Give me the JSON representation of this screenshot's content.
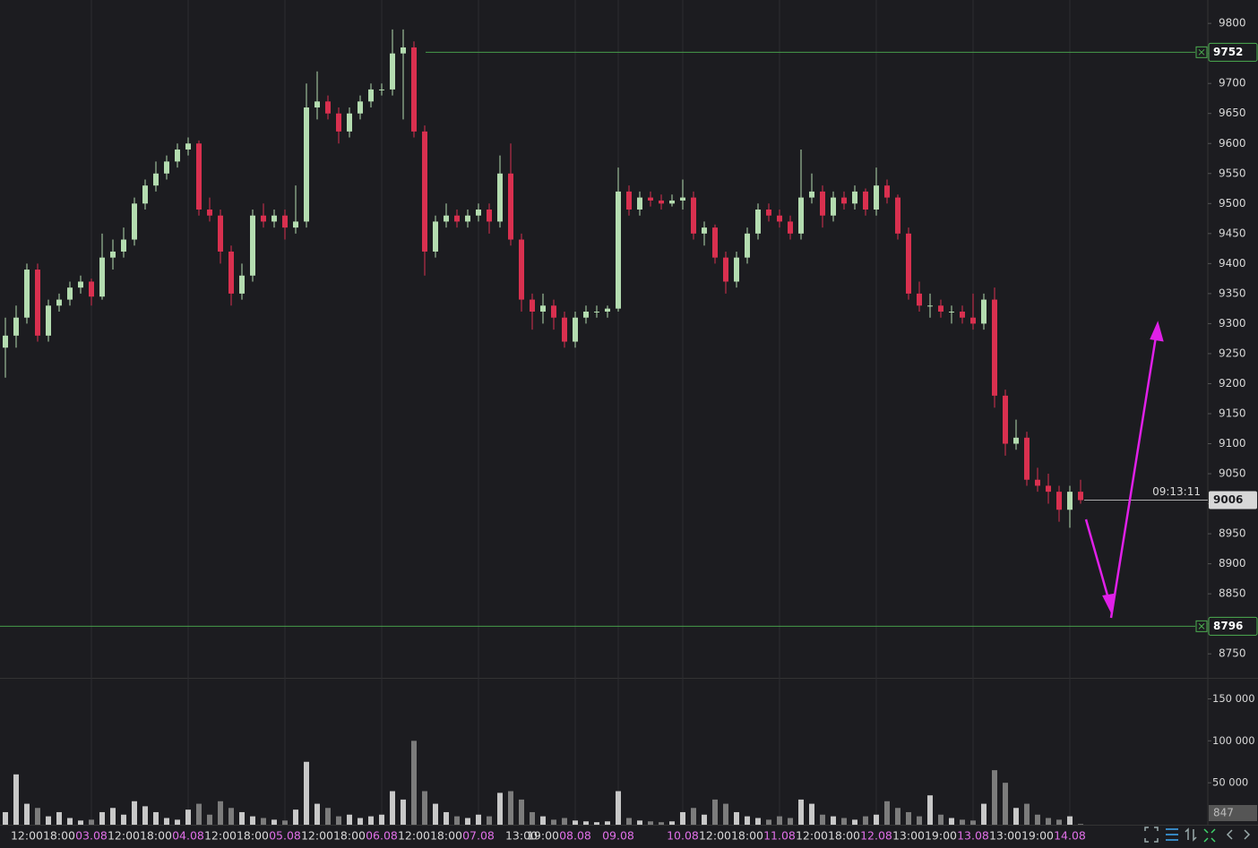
{
  "chart_data": {
    "type": "candlestick",
    "categories": [
      null,
      null,
      "12:00",
      null,
      null,
      "18:00",
      null,
      null,
      "03.08",
      null,
      null,
      "12:00",
      null,
      null,
      "18:00",
      null,
      null,
      "04.08",
      null,
      null,
      "12:00",
      null,
      null,
      "18:00",
      null,
      null,
      "05.08",
      null,
      null,
      "12:00",
      null,
      null,
      "18:00",
      null,
      null,
      "06.08",
      null,
      null,
      "12:00",
      null,
      null,
      "18:00",
      null,
      null,
      "07.08",
      null,
      null,
      null,
      "13:00",
      null,
      "19:00",
      null,
      null,
      "08.08",
      null,
      null,
      null,
      "09.08",
      null,
      null,
      null,
      null,
      null,
      "10.08",
      null,
      null,
      "12:00",
      null,
      null,
      "18:00",
      null,
      null,
      "11.08",
      null,
      null,
      "12:00",
      null,
      null,
      "18:00",
      null,
      null,
      "12.08",
      null,
      null,
      "13:00",
      null,
      null,
      "19:00",
      null,
      null,
      "13.08",
      null,
      null,
      "13:00",
      null,
      null,
      "19:00",
      null,
      null,
      "14.08",
      null
    ],
    "candles": [
      [
        9260,
        9310,
        9210,
        9280
      ],
      [
        9280,
        9330,
        9260,
        9310
      ],
      [
        9310,
        9400,
        9300,
        9390
      ],
      [
        9390,
        9400,
        9270,
        9280
      ],
      [
        9280,
        9340,
        9270,
        9330
      ],
      [
        9330,
        9350,
        9320,
        9340
      ],
      [
        9340,
        9370,
        9330,
        9360
      ],
      [
        9360,
        9380,
        9350,
        9370
      ],
      [
        9370,
        9375,
        9330,
        9345
      ],
      [
        9345,
        9450,
        9340,
        9410
      ],
      [
        9410,
        9440,
        9390,
        9420
      ],
      [
        9420,
        9460,
        9410,
        9440
      ],
      [
        9440,
        9510,
        9430,
        9500
      ],
      [
        9500,
        9540,
        9490,
        9530
      ],
      [
        9530,
        9570,
        9520,
        9550
      ],
      [
        9550,
        9580,
        9540,
        9570
      ],
      [
        9570,
        9600,
        9560,
        9590
      ],
      [
        9590,
        9610,
        9580,
        9600
      ],
      [
        9600,
        9605,
        9480,
        9490
      ],
      [
        9490,
        9510,
        9470,
        9480
      ],
      [
        9480,
        9490,
        9400,
        9420
      ],
      [
        9420,
        9430,
        9330,
        9350
      ],
      [
        9350,
        9400,
        9340,
        9380
      ],
      [
        9380,
        9490,
        9370,
        9480
      ],
      [
        9480,
        9500,
        9460,
        9470
      ],
      [
        9470,
        9490,
        9460,
        9480
      ],
      [
        9480,
        9490,
        9440,
        9460
      ],
      [
        9460,
        9530,
        9450,
        9470
      ],
      [
        9470,
        9700,
        9460,
        9660
      ],
      [
        9660,
        9720,
        9640,
        9670
      ],
      [
        9670,
        9680,
        9640,
        9650
      ],
      [
        9650,
        9660,
        9600,
        9620
      ],
      [
        9620,
        9660,
        9610,
        9650
      ],
      [
        9650,
        9680,
        9640,
        9670
      ],
      [
        9670,
        9700,
        9660,
        9690
      ],
      [
        9690,
        9700,
        9680,
        9690
      ],
      [
        9690,
        9790,
        9680,
        9750
      ],
      [
        9750,
        9790,
        9640,
        9760
      ],
      [
        9760,
        9770,
        9610,
        9620
      ],
      [
        9620,
        9630,
        9380,
        9420
      ],
      [
        9420,
        9480,
        9410,
        9470
      ],
      [
        9470,
        9500,
        9460,
        9480
      ],
      [
        9480,
        9490,
        9460,
        9470
      ],
      [
        9470,
        9490,
        9460,
        9480
      ],
      [
        9480,
        9500,
        9470,
        9490
      ],
      [
        9490,
        9500,
        9450,
        9470
      ],
      [
        9470,
        9580,
        9460,
        9550
      ],
      [
        9550,
        9600,
        9430,
        9440
      ],
      [
        9440,
        9450,
        9320,
        9340
      ],
      [
        9340,
        9350,
        9290,
        9320
      ],
      [
        9320,
        9350,
        9300,
        9330
      ],
      [
        9330,
        9340,
        9290,
        9310
      ],
      [
        9310,
        9320,
        9260,
        9270
      ],
      [
        9270,
        9320,
        9260,
        9310
      ],
      [
        9310,
        9330,
        9300,
        9320
      ],
      [
        9320,
        9330,
        9310,
        9320
      ],
      [
        9320,
        9330,
        9310,
        9325
      ],
      [
        9325,
        9560,
        9320,
        9520
      ],
      [
        9520,
        9530,
        9480,
        9490
      ],
      [
        9490,
        9520,
        9480,
        9510
      ],
      [
        9510,
        9520,
        9495,
        9505
      ],
      [
        9505,
        9515,
        9490,
        9500
      ],
      [
        9500,
        9515,
        9495,
        9505
      ],
      [
        9505,
        9540,
        9490,
        9510
      ],
      [
        9510,
        9520,
        9440,
        9450
      ],
      [
        9450,
        9470,
        9430,
        9460
      ],
      [
        9460,
        9465,
        9400,
        9410
      ],
      [
        9410,
        9420,
        9350,
        9370
      ],
      [
        9370,
        9420,
        9360,
        9410
      ],
      [
        9410,
        9460,
        9400,
        9450
      ],
      [
        9450,
        9500,
        9440,
        9490
      ],
      [
        9490,
        9500,
        9470,
        9480
      ],
      [
        9480,
        9490,
        9460,
        9470
      ],
      [
        9470,
        9480,
        9440,
        9450
      ],
      [
        9450,
        9590,
        9440,
        9510
      ],
      [
        9510,
        9550,
        9500,
        9520
      ],
      [
        9520,
        9530,
        9460,
        9480
      ],
      [
        9480,
        9520,
        9470,
        9510
      ],
      [
        9510,
        9520,
        9490,
        9500
      ],
      [
        9500,
        9530,
        9490,
        9520
      ],
      [
        9520,
        9525,
        9480,
        9490
      ],
      [
        9490,
        9560,
        9480,
        9530
      ],
      [
        9530,
        9540,
        9500,
        9510
      ],
      [
        9510,
        9515,
        9440,
        9450
      ],
      [
        9450,
        9460,
        9340,
        9350
      ],
      [
        9350,
        9370,
        9320,
        9330
      ],
      [
        9330,
        9350,
        9310,
        9330
      ],
      [
        9330,
        9340,
        9310,
        9320
      ],
      [
        9320,
        9330,
        9300,
        9320
      ],
      [
        9320,
        9330,
        9300,
        9310
      ],
      [
        9310,
        9350,
        9290,
        9300
      ],
      [
        9300,
        9350,
        9290,
        9340
      ],
      [
        9340,
        9360,
        9160,
        9180
      ],
      [
        9180,
        9190,
        9080,
        9100
      ],
      [
        9100,
        9140,
        9090,
        9110
      ],
      [
        9110,
        9120,
        9030,
        9040
      ],
      [
        9040,
        9060,
        9020,
        9030
      ],
      [
        9030,
        9050,
        9000,
        9020
      ],
      [
        9020,
        9030,
        8970,
        8990
      ],
      [
        8990,
        9030,
        8960,
        9020
      ],
      [
        9020,
        9040,
        9000,
        9006
      ]
    ],
    "up_color": "#b4dcb0",
    "down_color": "#d9304f",
    "ylim": [
      8710,
      9839
    ],
    "yticks": [
      8750,
      8800,
      8850,
      8900,
      8950,
      9000,
      9050,
      9100,
      9150,
      9200,
      9250,
      9300,
      9350,
      9400,
      9450,
      9500,
      9550,
      9600,
      9650,
      9700,
      9750,
      9800
    ],
    "price_lines": [
      {
        "value": 9752,
        "color": "#4caf50"
      },
      {
        "value": 8796,
        "color": "#4caf50"
      }
    ],
    "countdown": "09:13:11",
    "volume": {
      "values": [
        15000,
        60000,
        25000,
        20000,
        10000,
        15000,
        8000,
        5000,
        6000,
        15000,
        20000,
        12000,
        28000,
        22000,
        15000,
        8000,
        6000,
        18000,
        25000,
        12000,
        28000,
        20000,
        15000,
        10000,
        8000,
        6000,
        5000,
        18000,
        75000,
        25000,
        20000,
        10000,
        12000,
        8000,
        10000,
        12000,
        40000,
        30000,
        100000,
        40000,
        25000,
        15000,
        10000,
        8000,
        12000,
        10000,
        38000,
        40000,
        30000,
        15000,
        10000,
        6000,
        8000,
        5000,
        4000,
        3000,
        4000,
        40000,
        8000,
        5000,
        4000,
        3000,
        4000,
        15000,
        20000,
        12000,
        30000,
        25000,
        15000,
        10000,
        8000,
        6000,
        10000,
        8000,
        30000,
        25000,
        12000,
        10000,
        8000,
        6000,
        10000,
        12000,
        28000,
        20000,
        15000,
        10000,
        35000,
        12000,
        8000,
        6000,
        5000,
        25000,
        65000,
        50000,
        20000,
        25000,
        12000,
        8000,
        6000,
        10000,
        847
      ],
      "ylim": [
        0,
        174000
      ],
      "yticks": [
        {
          "value": 50000,
          "label": "50 000"
        },
        {
          "value": 100000,
          "label": "100 000"
        },
        {
          "value": 150000,
          "label": "150 000"
        }
      ],
      "up_color": "#c8c8c8",
      "down_color": "#7c7c7c"
    }
  }
}
